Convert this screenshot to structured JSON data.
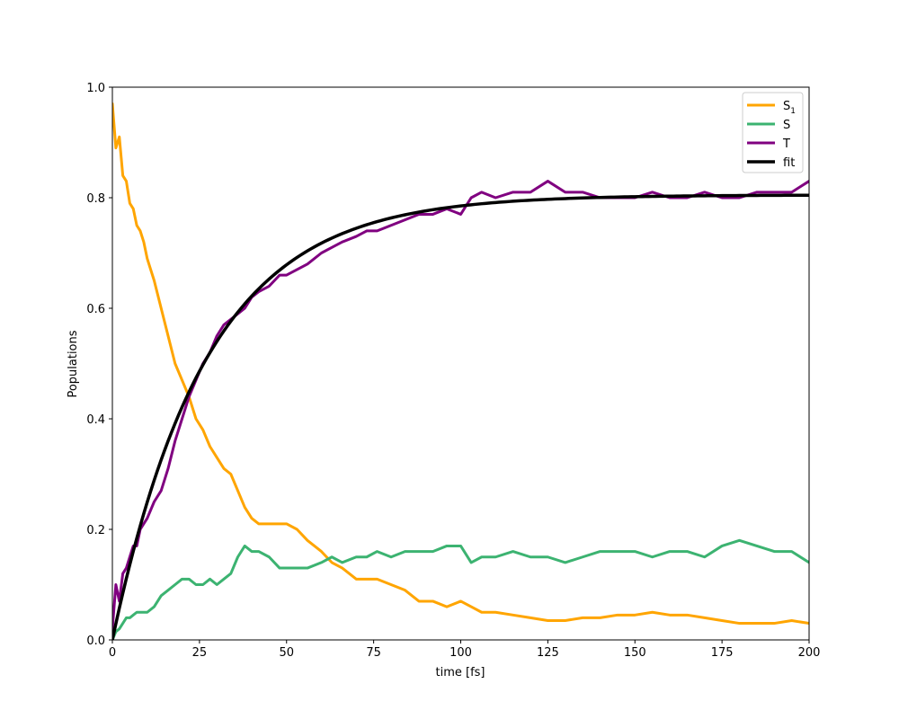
{
  "chart_data": {
    "type": "line",
    "xlabel": "time [fs]",
    "ylabel": "Populations",
    "xlim": [
      0,
      200
    ],
    "ylim": [
      0,
      1.0
    ],
    "xticks": [
      0,
      25,
      50,
      75,
      100,
      125,
      150,
      175,
      200
    ],
    "yticks": [
      0.0,
      0.2,
      0.4,
      0.6,
      0.8,
      1.0
    ],
    "xtick_labels": [
      "0",
      "25",
      "50",
      "75",
      "100",
      "125",
      "150",
      "175",
      "200"
    ],
    "ytick_labels": [
      "0.0",
      "0.2",
      "0.4",
      "0.6",
      "0.8",
      "1.0"
    ],
    "grid": false,
    "legend_position": "top-right",
    "series": [
      {
        "name": "S1",
        "name_base": "S",
        "name_sub": "1",
        "color": "#FFA500",
        "x": [
          0,
          1,
          2,
          3,
          4,
          5,
          6,
          7,
          8,
          9,
          10,
          12,
          14,
          16,
          18,
          20,
          22,
          24,
          26,
          28,
          30,
          32,
          34,
          36,
          38,
          40,
          42,
          45,
          48,
          50,
          53,
          56,
          60,
          63,
          66,
          70,
          73,
          76,
          80,
          84,
          88,
          92,
          96,
          100,
          103,
          106,
          110,
          115,
          120,
          125,
          130,
          135,
          140,
          145,
          150,
          155,
          160,
          165,
          170,
          175,
          180,
          185,
          190,
          195,
          200
        ],
        "y": [
          0.97,
          0.89,
          0.91,
          0.84,
          0.83,
          0.79,
          0.78,
          0.75,
          0.74,
          0.72,
          0.69,
          0.65,
          0.6,
          0.55,
          0.5,
          0.47,
          0.44,
          0.4,
          0.38,
          0.35,
          0.33,
          0.31,
          0.3,
          0.27,
          0.24,
          0.22,
          0.21,
          0.21,
          0.21,
          0.21,
          0.2,
          0.18,
          0.16,
          0.14,
          0.13,
          0.11,
          0.11,
          0.11,
          0.1,
          0.09,
          0.07,
          0.07,
          0.06,
          0.07,
          0.06,
          0.05,
          0.05,
          0.045,
          0.04,
          0.035,
          0.035,
          0.04,
          0.04,
          0.045,
          0.045,
          0.05,
          0.045,
          0.045,
          0.04,
          0.035,
          0.03,
          0.03,
          0.03,
          0.035,
          0.03
        ]
      },
      {
        "name": "S",
        "color": "#3CB371",
        "x": [
          0,
          1,
          2,
          3,
          4,
          5,
          6,
          7,
          8,
          9,
          10,
          12,
          14,
          16,
          18,
          20,
          22,
          24,
          26,
          28,
          30,
          32,
          34,
          36,
          38,
          40,
          42,
          45,
          48,
          50,
          53,
          56,
          60,
          63,
          66,
          70,
          73,
          76,
          80,
          84,
          88,
          92,
          96,
          100,
          103,
          106,
          110,
          115,
          120,
          125,
          130,
          135,
          140,
          145,
          150,
          155,
          160,
          165,
          170,
          175,
          180,
          185,
          190,
          195,
          200
        ],
        "y": [
          0.0,
          0.015,
          0.02,
          0.03,
          0.04,
          0.04,
          0.045,
          0.05,
          0.05,
          0.05,
          0.05,
          0.06,
          0.08,
          0.09,
          0.1,
          0.11,
          0.11,
          0.1,
          0.1,
          0.11,
          0.1,
          0.11,
          0.12,
          0.15,
          0.17,
          0.16,
          0.16,
          0.15,
          0.13,
          0.13,
          0.13,
          0.13,
          0.14,
          0.15,
          0.14,
          0.15,
          0.15,
          0.16,
          0.15,
          0.16,
          0.16,
          0.16,
          0.17,
          0.17,
          0.14,
          0.15,
          0.15,
          0.16,
          0.15,
          0.15,
          0.14,
          0.15,
          0.16,
          0.16,
          0.16,
          0.15,
          0.16,
          0.16,
          0.15,
          0.17,
          0.18,
          0.17,
          0.16,
          0.16,
          0.14
        ]
      },
      {
        "name": "T",
        "color": "#800080",
        "x": [
          0,
          1,
          2,
          3,
          4,
          5,
          6,
          7,
          8,
          9,
          10,
          12,
          14,
          16,
          18,
          20,
          22,
          24,
          26,
          28,
          30,
          32,
          34,
          36,
          38,
          40,
          42,
          45,
          48,
          50,
          53,
          56,
          60,
          63,
          66,
          70,
          73,
          76,
          80,
          84,
          88,
          92,
          96,
          100,
          103,
          106,
          110,
          115,
          120,
          125,
          130,
          135,
          140,
          145,
          150,
          155,
          160,
          165,
          170,
          175,
          180,
          185,
          190,
          195,
          200
        ],
        "y": [
          0.02,
          0.1,
          0.07,
          0.12,
          0.13,
          0.15,
          0.17,
          0.17,
          0.2,
          0.21,
          0.22,
          0.25,
          0.27,
          0.31,
          0.36,
          0.4,
          0.44,
          0.47,
          0.5,
          0.52,
          0.55,
          0.57,
          0.58,
          0.59,
          0.6,
          0.62,
          0.63,
          0.64,
          0.66,
          0.66,
          0.67,
          0.68,
          0.7,
          0.71,
          0.72,
          0.73,
          0.74,
          0.74,
          0.75,
          0.76,
          0.77,
          0.77,
          0.78,
          0.77,
          0.8,
          0.81,
          0.8,
          0.81,
          0.81,
          0.83,
          0.81,
          0.81,
          0.8,
          0.8,
          0.8,
          0.81,
          0.8,
          0.8,
          0.81,
          0.8,
          0.8,
          0.81,
          0.81,
          0.81,
          0.83
        ]
      },
      {
        "name": "fit",
        "color": "#000000",
        "model": "A*(1-exp(-x/tau))",
        "A": 0.805,
        "tau": 27
      }
    ]
  }
}
